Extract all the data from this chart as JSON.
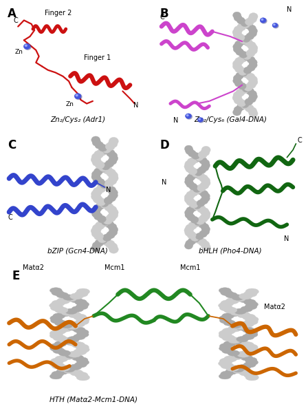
{
  "panel_labels": [
    "A",
    "B",
    "C",
    "D",
    "E"
  ],
  "panel_label_fontsize": 12,
  "panel_label_weight": "bold",
  "background_color": "#ffffff",
  "panels": {
    "A": {
      "title": "Zn₂/Cys₂ (Adr1)",
      "protein_color": "#cc1111",
      "zn_color": "#4455dd",
      "zn_highlight": "#8899ff"
    },
    "B": {
      "title": "Zn₂/Cys₆ (Gal4-DNA)",
      "protein_color": "#cc44cc",
      "protein_color2": "#ee88ee",
      "dna_color": "#aaaaaa",
      "zn_color": "#4455dd"
    },
    "C": {
      "title": "bZIP (Gcn4-DNA)",
      "protein_color": "#3344cc",
      "protein_color2": "#6677ee",
      "dna_color": "#aaaaaa"
    },
    "D": {
      "title": "bHLH (Pho4-DNA)",
      "protein_color": "#116611",
      "protein_color2": "#449944",
      "dna_color": "#aaaaaa"
    },
    "E": {
      "title": "HTH (Matα2-Mcm1-DNA)",
      "mcm1_color": "#228822",
      "mcm1_color2": "#55aa55",
      "mat_color": "#cc6600",
      "mat_color2": "#ee8833",
      "dna_color": "#aaaaaa"
    }
  },
  "figure_width": 4.48,
  "figure_height": 6.0,
  "dpi": 100
}
